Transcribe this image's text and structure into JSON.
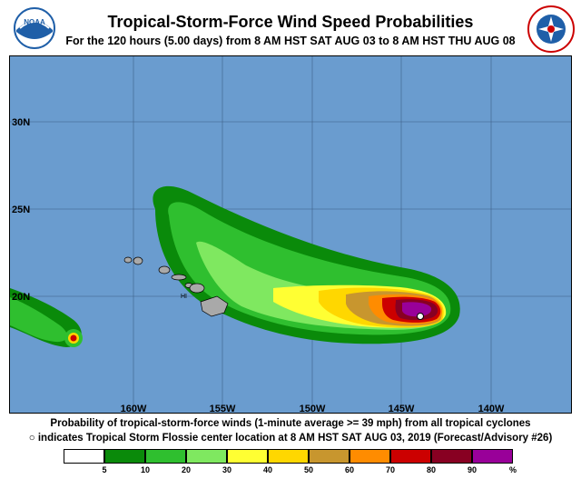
{
  "header": {
    "title": "Tropical-Storm-Force Wind Speed Probabilities",
    "subtitle": "For the 120 hours (5.00 days) from 8 AM HST SAT AUG 03 to 8 AM HST THU AUG 08",
    "noaa_logo_text": "NOAA",
    "nws_logo_text": "NATIONAL WEATHER SERVICE"
  },
  "map": {
    "ocean_color": "#6a9ccf",
    "land_color": "#a9a9a9",
    "lat_labels": [
      "30N",
      "25N",
      "20N"
    ],
    "lon_labels": [
      "160W",
      "155W",
      "150W",
      "145W",
      "140W"
    ],
    "place_label": "HI"
  },
  "footer": {
    "line1": "Probability of tropical-storm-force winds (1-minute average >= 39 mph) from all tropical cyclones",
    "line2_marker": "○",
    "line2": "indicates Tropical Storm Flossie center location at 8 AM HST SAT AUG 03, 2019 (Forecast/Advisory #26)"
  },
  "legend": {
    "colors": [
      "#ffffff",
      "#0a8a0a",
      "#2fbf2f",
      "#7fe860",
      "#ffff33",
      "#ffd700",
      "#c8962e",
      "#ff8c00",
      "#cc0000",
      "#880022",
      "#990099"
    ],
    "ticks": [
      "5",
      "10",
      "20",
      "30",
      "40",
      "50",
      "60",
      "70",
      "80",
      "90",
      "%"
    ]
  }
}
